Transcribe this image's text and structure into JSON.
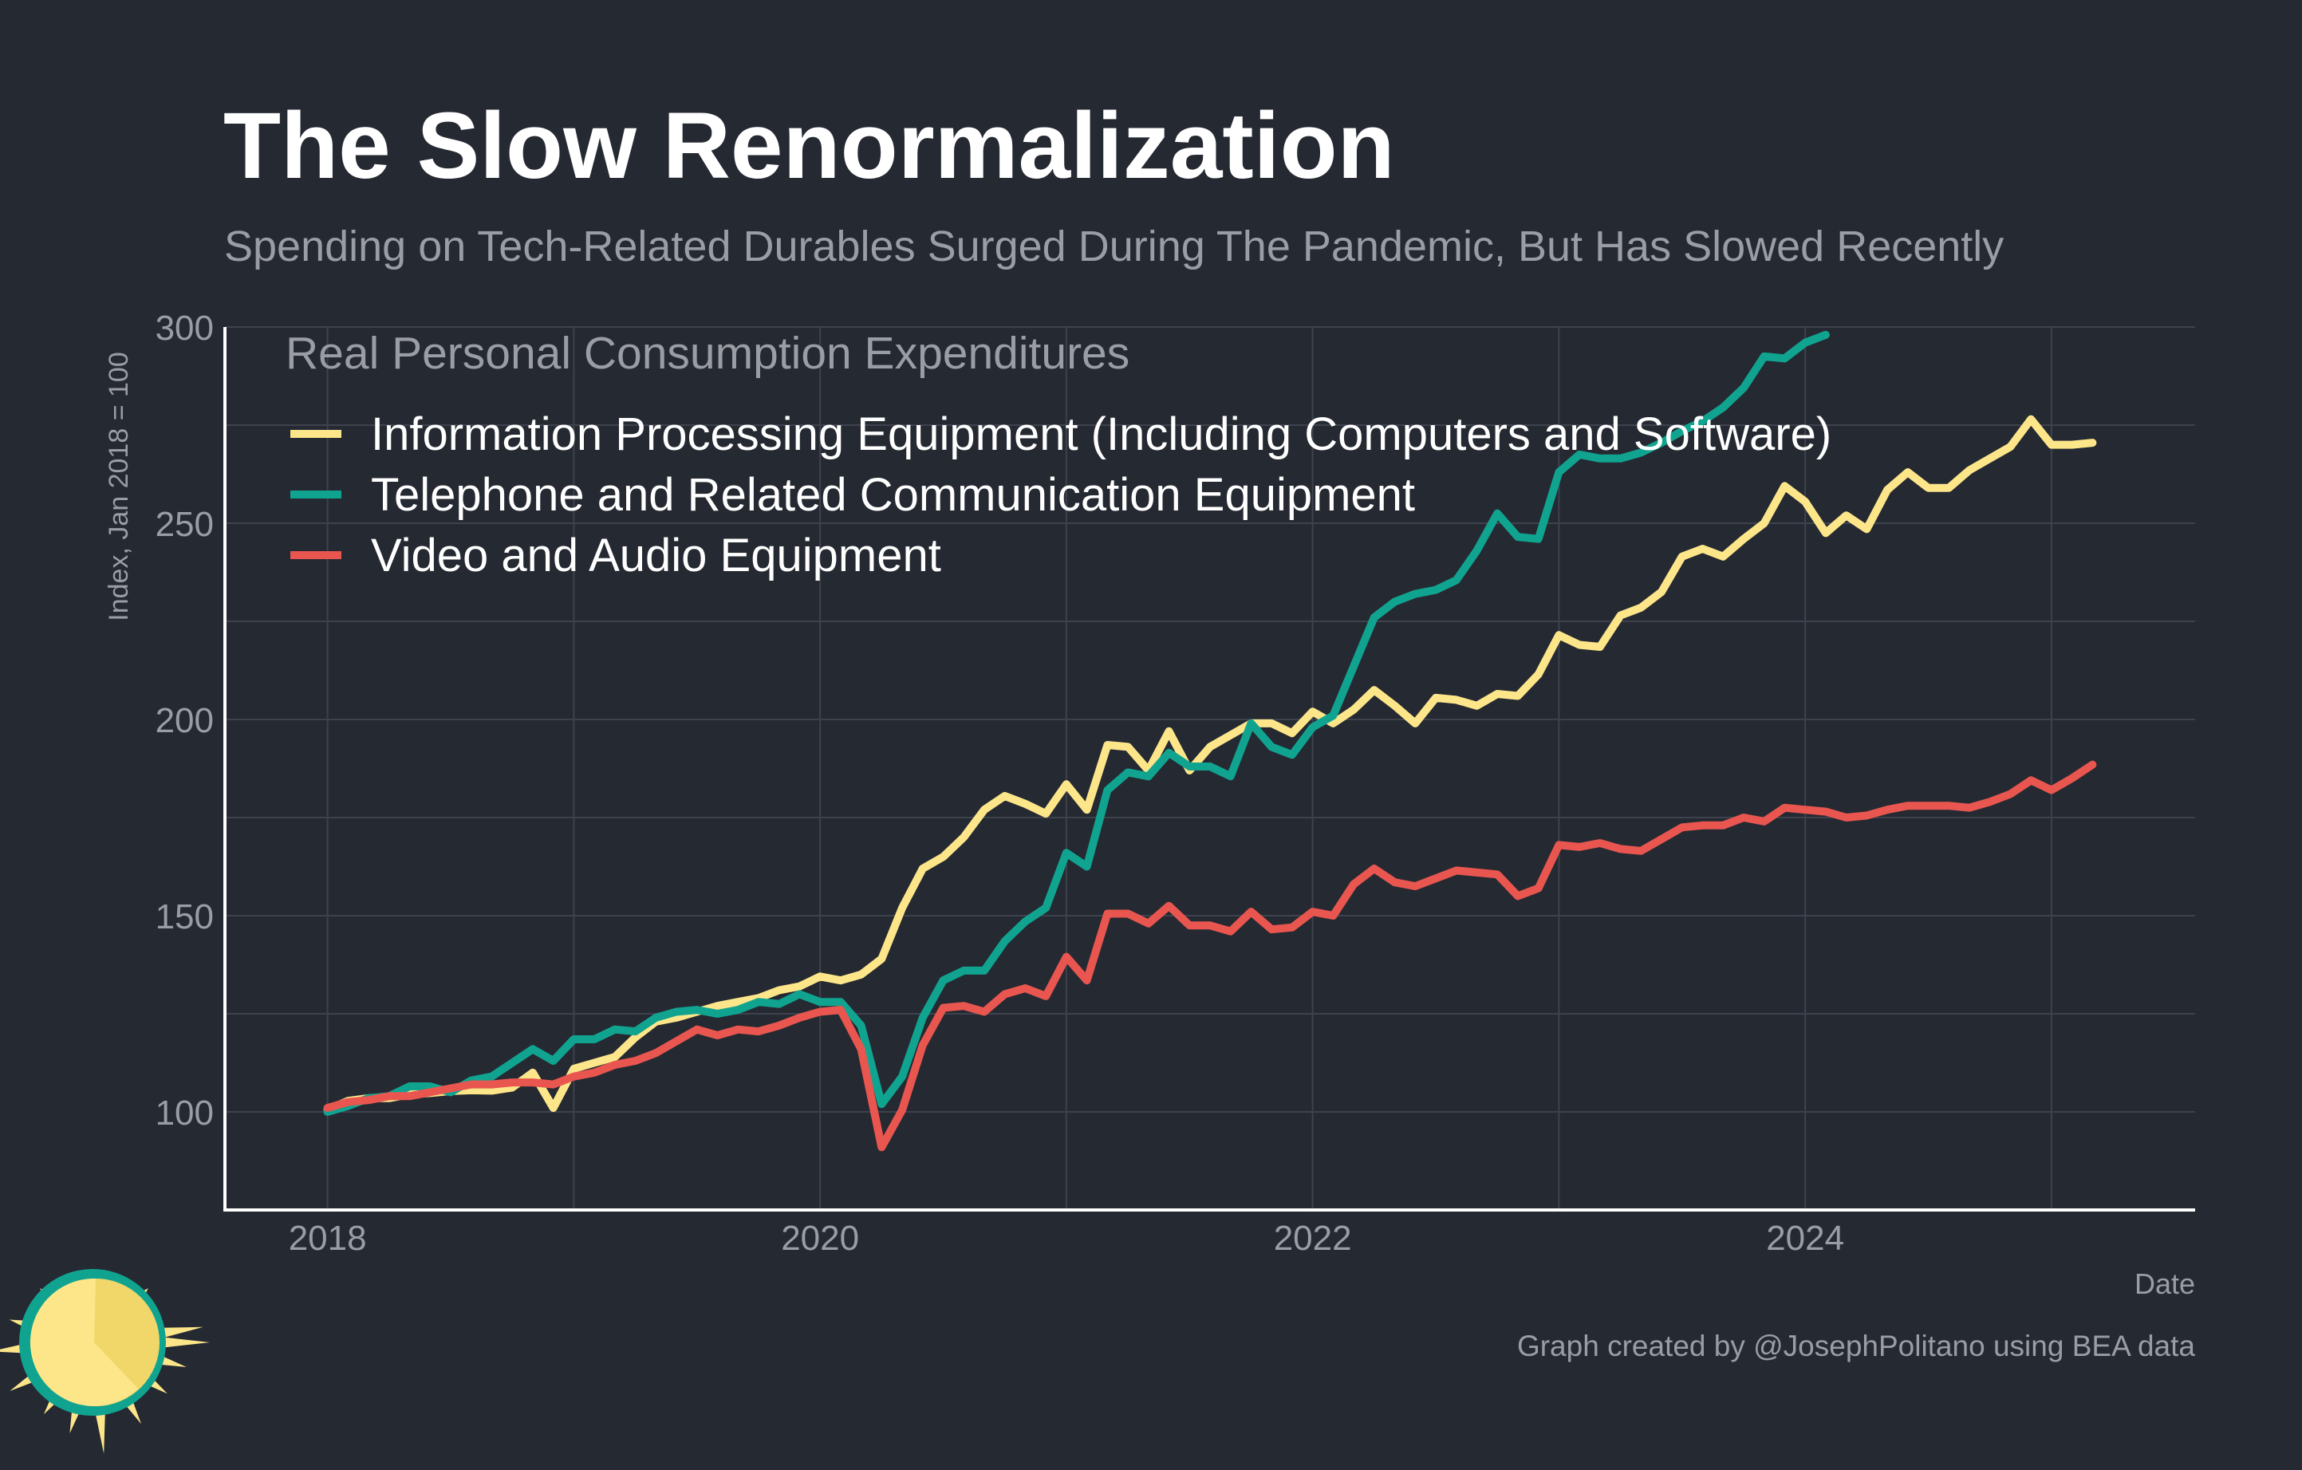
{
  "title": "The Slow Renormalization",
  "subtitle": "Spending on Tech-Related Durables Surged During The Pandemic, But Has Slowed Recently",
  "caption": "Graph created by @JosephPolitano using BEA data",
  "colors": {
    "background": "#252932",
    "grid": "#3d424d",
    "axis": "#ffffff",
    "information": "#fde68a",
    "telephone": "#10a490",
    "video": "#e8564f",
    "logo_sun": "#fde68a",
    "logo_ring": "#10a490"
  },
  "logo": {
    "icon": "sun-logo-icon"
  },
  "chart_data": {
    "type": "line",
    "title": "The Slow Renormalization",
    "subtitle": "Spending on Tech-Related Durables Surged During The Pandemic, But Has Slowed Recently",
    "xlabel": "Date",
    "ylabel": "Index, Jan 2018 = 100",
    "xlim": [
      "2017-08",
      "2025-08"
    ],
    "ylim": [
      75,
      300
    ],
    "y_ticks": [
      100,
      150,
      200,
      250,
      300
    ],
    "x_ticks": [
      {
        "label": "2018",
        "date": "2018-01"
      },
      {
        "label": "2020",
        "date": "2020-01"
      },
      {
        "label": "2022",
        "date": "2022-01"
      },
      {
        "label": "2024",
        "date": "2024-01"
      }
    ],
    "grid": true,
    "legend": {
      "title": "Real Personal Consumption Expenditures",
      "position": "top-left"
    },
    "series": [
      {
        "name": "Information Processing Equipment (Including Computers and Software)",
        "color": "#fde68a",
        "start": "2018-01",
        "values": [
          100.5,
          102.8,
          103.5,
          103.5,
          104.5,
          104.8,
          105.3,
          105.5,
          105.4,
          106.2,
          110.0,
          101.0,
          111.0,
          112.5,
          114.0,
          119.0,
          123.0,
          124.0,
          125.5,
          127.0,
          128.0,
          129.0,
          131.0,
          132.0,
          134.5,
          133.5,
          135.0,
          139.0,
          152.0,
          162.0,
          165.0,
          170.0,
          177.0,
          180.5,
          178.5,
          176.0,
          183.5,
          177.0,
          193.5,
          193.0,
          187.0,
          197.0,
          187.0,
          193.0,
          196.0,
          199.0,
          199.0,
          196.5,
          202.0,
          199.0,
          202.5,
          207.5,
          203.5,
          199.0,
          205.5,
          205.0,
          203.5,
          206.5,
          206.0,
          211.5,
          221.5,
          219.0,
          218.5,
          226.5,
          228.5,
          232.5,
          241.5,
          243.5,
          241.5,
          246.0,
          250.0,
          259.5,
          255.5,
          247.5,
          252.0,
          248.5,
          258.5,
          263.0,
          259.0,
          259.0,
          263.5,
          266.5,
          269.5,
          276.5,
          270.0,
          270.0,
          270.5
        ]
      },
      {
        "name": "Telephone and Related Communication Equipment",
        "color": "#10a490",
        "start": "2018-01",
        "values": [
          100.0,
          101.5,
          103.5,
          104.0,
          106.5,
          106.5,
          105.0,
          108.0,
          109.0,
          112.5,
          116.0,
          113.0,
          118.5,
          118.5,
          121.0,
          120.5,
          124.0,
          125.5,
          126.0,
          125.0,
          126.0,
          128.0,
          127.5,
          130.0,
          128.0,
          128.0,
          122.0,
          102.0,
          109.0,
          124.0,
          133.5,
          136.0,
          136.0,
          143.5,
          148.5,
          152.0,
          166.0,
          162.5,
          182.0,
          186.5,
          185.5,
          191.5,
          188.0,
          188.0,
          185.5,
          199.0,
          193.0,
          191.0,
          198.0,
          201.0,
          213.5,
          226.0,
          230.0,
          232.0,
          233.0,
          235.5,
          243.0,
          252.5,
          246.5,
          246.0,
          263.0,
          267.5,
          266.5,
          266.5,
          268.0,
          270.5,
          273.5,
          276.0,
          279.5,
          284.5,
          292.5,
          292.0,
          296.0,
          298.0
        ]
      },
      {
        "name": "Video and Audio Equipment",
        "color": "#e8564f",
        "start": "2018-01",
        "values": [
          101.0,
          102.5,
          103.0,
          104.0,
          104.0,
          105.0,
          106.0,
          107.0,
          107.0,
          107.5,
          107.5,
          107.0,
          109.0,
          110.0,
          112.0,
          113.0,
          115.0,
          118.0,
          121.0,
          119.5,
          121.0,
          120.5,
          122.0,
          124.0,
          125.5,
          126.0,
          116.0,
          91.0,
          100.5,
          117.0,
          126.5,
          127.0,
          125.5,
          130.0,
          131.5,
          129.5,
          139.5,
          133.5,
          150.5,
          150.5,
          148.0,
          152.5,
          147.5,
          147.5,
          146.0,
          151.0,
          146.5,
          147.0,
          151.0,
          150.0,
          158.0,
          162.0,
          158.5,
          157.5,
          159.5,
          161.5,
          161.0,
          160.5,
          155.0,
          157.0,
          168.0,
          167.5,
          168.5,
          167.0,
          166.5,
          169.5,
          172.5,
          173.0,
          173.0,
          175.0,
          174.0,
          177.5,
          177.0,
          176.5,
          175.0,
          175.5,
          177.0,
          178.0,
          178.0,
          178.0,
          177.5,
          179.0,
          181.0,
          184.5,
          182.0,
          185.0,
          188.5
        ]
      }
    ]
  }
}
